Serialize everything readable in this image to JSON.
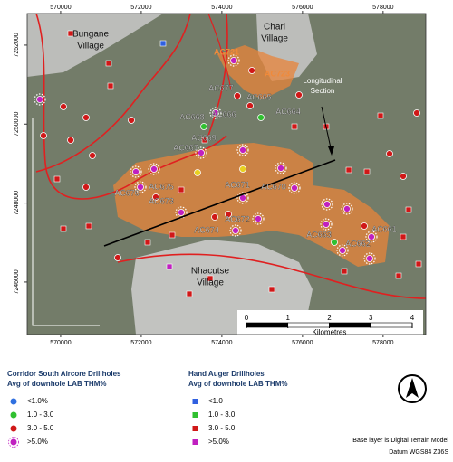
{
  "map": {
    "xlim": [
      569170,
      579060
    ],
    "ylim": [
      7244670,
      7252800
    ],
    "xticks": [
      570000,
      572000,
      574000,
      576000,
      578000
    ],
    "yticks": [
      7246000,
      7248000,
      7250000,
      7252000
    ],
    "places": [
      [
        "Bungane",
        "Village"
      ],
      [
        "Chari",
        "Village"
      ],
      [
        "Nhacutse",
        "Village"
      ]
    ],
    "section_label": [
      "Longitudinal",
      "Section"
    ],
    "drillholes": [
      "AC721",
      "AC723",
      "AC677",
      "AC665",
      "AC664",
      "AC666",
      "AC668",
      "AC669",
      "AC667",
      "AC675",
      "AC671",
      "AC670",
      "AC676",
      "AC673",
      "AC672",
      "AC674",
      "AC663",
      "AC662",
      "AC661"
    ],
    "scale": {
      "ticks": [
        0,
        1,
        2,
        3,
        4
      ],
      "unit": "Kilometres"
    }
  },
  "legends": [
    {
      "title": [
        "Corridor South Aircore Drillholes",
        "Avg of downhole LAB THM%"
      ],
      "items": [
        "<1.0%",
        "1.0 - 3.0",
        "3.0 - 5.0",
        ">5.0%"
      ]
    },
    {
      "title": [
        "Hand Auger Drillholes",
        "Avg of downhole LAB THM%"
      ],
      "items": [
        "<1.0",
        "1.0 - 3.0",
        "3.0 - 5.0",
        ">5.0%"
      ]
    }
  ],
  "footer": [
    "Base layer is Digital Terrain Model",
    "Datum WGS84 Z36S"
  ]
}
